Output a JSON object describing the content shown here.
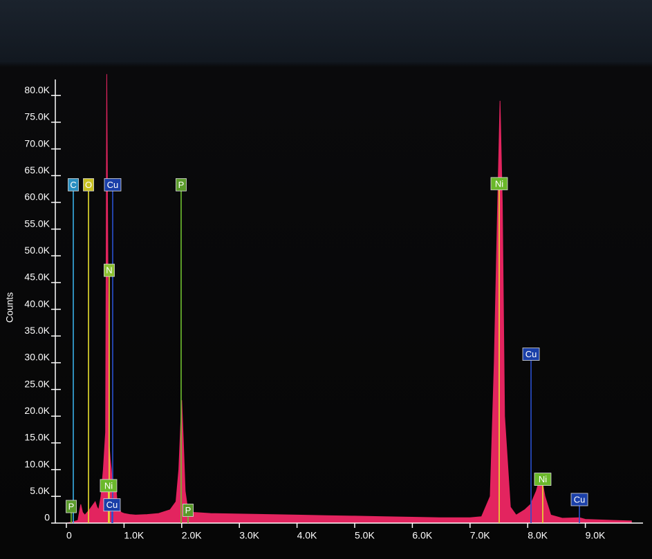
{
  "chart_data": {
    "type": "area",
    "y_label": "Counts",
    "color": "#e3245f",
    "xlim": [
      0,
      10000
    ],
    "ylim": [
      0,
      83000
    ],
    "xticks": [
      0,
      {
        "value": 1000,
        "label": "1.0K"
      },
      {
        "value": 2000,
        "label": "2.0K"
      },
      {
        "value": 3000,
        "label": "3.0K"
      },
      {
        "value": 4000,
        "label": "4.0K"
      },
      {
        "value": 5000,
        "label": "5.0K"
      },
      {
        "value": 6000,
        "label": "6.0K"
      },
      {
        "value": 7000,
        "label": "7.0K"
      },
      {
        "value": 8000,
        "label": "8.0K"
      },
      {
        "value": 9000,
        "label": "9.0K"
      }
    ],
    "yticks": [
      0,
      {
        "value": 5000,
        "label": "5.0K"
      },
      {
        "value": 10000,
        "label": "10.0K"
      },
      {
        "value": 15000,
        "label": "15.0K"
      },
      {
        "value": 20000,
        "label": "20.0K"
      },
      {
        "value": 25000,
        "label": "25.0K"
      },
      {
        "value": 30000,
        "label": "30.0K"
      },
      {
        "value": 35000,
        "label": "35.0K"
      },
      {
        "value": 40000,
        "label": "40.0K"
      },
      {
        "value": 45000,
        "label": "45.0K"
      },
      {
        "value": 50000,
        "label": "50.0K"
      },
      {
        "value": 55000,
        "label": "55.0K"
      },
      {
        "value": 60000,
        "label": "60.0K"
      },
      {
        "value": 65000,
        "label": "65.0K"
      },
      {
        "value": 70000,
        "label": "70.0K"
      },
      {
        "value": 75000,
        "label": "75.0K"
      },
      {
        "value": 80000,
        "label": "80.0K"
      }
    ],
    "x": [
      0,
      100,
      200,
      250,
      280,
      320,
      400,
      500,
      530,
      560,
      600,
      640,
      680,
      700,
      720,
      740,
      760,
      780,
      800,
      820,
      850,
      880,
      900,
      950,
      1000,
      1100,
      1200,
      1400,
      1600,
      1800,
      1900,
      1950,
      2000,
      2030,
      2060,
      2100,
      2200,
      2500,
      3000,
      3500,
      4000,
      4500,
      5000,
      5500,
      6000,
      6500,
      7000,
      7200,
      7350,
      7420,
      7480,
      7520,
      7560,
      7600,
      7700,
      7800,
      7950,
      8050,
      8150,
      8200,
      8250,
      8300,
      8400,
      8600,
      8900,
      9000,
      9500,
      9800
    ],
    "values": [
      0,
      200,
      500,
      3500,
      2000,
      1500,
      2500,
      4000,
      3000,
      2500,
      5000,
      10000,
      17000,
      84000,
      50000,
      15000,
      12000,
      10000,
      7000,
      6000,
      8000,
      4000,
      3000,
      2000,
      1800,
      1600,
      1500,
      1600,
      1800,
      2500,
      4000,
      10000,
      23000,
      15000,
      6000,
      3000,
      2000,
      1800,
      1700,
      1600,
      1500,
      1400,
      1300,
      1200,
      1100,
      1000,
      1000,
      1200,
      5000,
      30000,
      60000,
      79000,
      60000,
      20000,
      3000,
      1500,
      2500,
      3500,
      6000,
      8000,
      8000,
      5000,
      1500,
      900,
      1000,
      700,
      500,
      400
    ],
    "markers": [
      {
        "label": "C",
        "x": 120,
        "height": 63300,
        "box_color": "#2a8fc0",
        "line_color": "#3ab0e8"
      },
      {
        "label": "O",
        "x": 384,
        "height": 63300,
        "box_color": "#c8c020",
        "line_color": "#e8e030"
      },
      {
        "label": "Cu",
        "x": 803,
        "height": 63300,
        "box_color": "#1a3fa8",
        "line_color": "#2a50d0"
      },
      {
        "label": "P",
        "x": 1990,
        "height": 63300,
        "box_color": "#5a9a2a",
        "line_color": "#70c030"
      },
      {
        "label": "N",
        "x": 743,
        "height": 47300,
        "box_color": "#8ac030",
        "line_color": "#e8e030"
      },
      {
        "label": "Ni",
        "x": 731,
        "height": 7000,
        "box_color": "#6ab82a",
        "line_color": "#e8e030"
      },
      {
        "label": "Cu",
        "x": 791,
        "height": 3400,
        "box_color": "#1a3fa8",
        "line_color": "#2a50d0"
      },
      {
        "label": "P",
        "x": 84,
        "height": 3100,
        "box_color": "#5a9a2a",
        "line_color": "#70c030"
      },
      {
        "label": "P",
        "x": 2110,
        "height": 2400,
        "box_color": "#5a9a2a",
        "line_color": "#70c030"
      },
      {
        "label": "Ni",
        "x": 7506,
        "height": 63500,
        "box_color": "#6ab82a",
        "line_color": "#e8e030"
      },
      {
        "label": "Cu",
        "x": 8058,
        "height": 31600,
        "box_color": "#1a3fa8",
        "line_color": "#2a50d0"
      },
      {
        "label": "Ni",
        "x": 8261,
        "height": 8200,
        "box_color": "#6ab82a",
        "line_color": "#e8e030"
      },
      {
        "label": "Cu",
        "x": 8897,
        "height": 4400,
        "box_color": "#1a3fa8",
        "line_color": "#2a50d0"
      }
    ]
  }
}
